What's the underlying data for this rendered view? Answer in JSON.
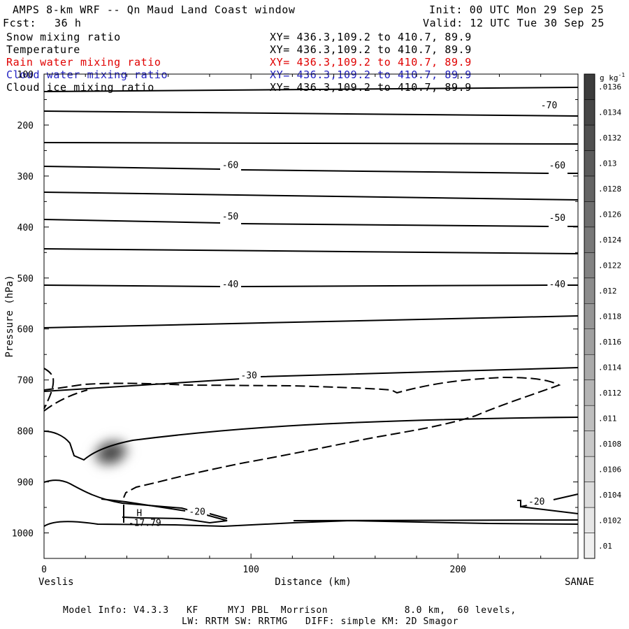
{
  "header": {
    "title": "AMPS 8-km WRF -- Qn Maud Land Coast window",
    "fcst_label": "Fcst:",
    "fcst_value": "36 h",
    "init": "Init: 00 UTC Mon 29 Sep 25",
    "valid": "Valid: 12 UTC Tue 30 Sep 25"
  },
  "fields": [
    {
      "name": "Snow mixing ratio",
      "xy": "XY= 436.3,109.2 to 410.7, 89.9",
      "color": "#000000"
    },
    {
      "name": "Temperature",
      "xy": "XY= 436.3,109.2 to 410.7, 89.9",
      "color": "#000000"
    },
    {
      "name": "Rain water mixing ratio",
      "xy": "XY= 436.3,109.2 to 410.7, 89.9",
      "color": "#e00000"
    },
    {
      "name": "Cloud water mixing ratio",
      "xy": "XY= 436.3,109.2 to 410.7, 89.9",
      "color": "#2020c0"
    },
    {
      "name": "Cloud ice mixing ratio",
      "xy": "XY= 436.3,109.2 to 410.7, 89.9",
      "color": "#000000"
    }
  ],
  "footer": {
    "line1": "Model Info: V4.3.3   KF     MYJ PBL  Morrison             8.0 km,  60 levels,",
    "line2": "LW: RRTM SW: RRTMG   DIFF: simple KM: 2D Smagor"
  },
  "chart_data": {
    "type": "cross-section contour",
    "xlabel": "Distance (km)",
    "ylabel": "Pressure (hPa)",
    "xlim": [
      0,
      258
    ],
    "ylim": [
      1050,
      100
    ],
    "x_ticks": [
      0,
      100,
      200
    ],
    "y_ticks": [
      100,
      200,
      300,
      400,
      500,
      600,
      700,
      800,
      900,
      1000
    ],
    "left_endpoint": "Veslis",
    "right_endpoint": "SANAE",
    "colorbar": {
      "unit_label": "g kg",
      "unit_exp": "-1",
      "min": 0.01,
      "max": 0.0138,
      "step": 0.0002,
      "labels": [
        ".01",
        ".0102",
        ".0104",
        ".0106",
        ".0108",
        ".011",
        ".0112",
        ".0114",
        ".0116",
        ".0118",
        ".012",
        ".0122",
        ".0124",
        ".0126",
        ".0128",
        ".013",
        ".0132",
        ".0134",
        ".0136"
      ]
    },
    "temperature_labels": [
      {
        "text": "-70",
        "x": 244,
        "p": 163
      },
      {
        "text": "-60",
        "x": 90,
        "p": 280
      },
      {
        "text": "-60",
        "x": 248,
        "p": 281
      },
      {
        "text": "-50",
        "x": 90,
        "p": 381
      },
      {
        "text": "-50",
        "x": 248,
        "p": 384
      },
      {
        "text": "-40",
        "x": 90,
        "p": 514
      },
      {
        "text": "-40",
        "x": 248,
        "p": 514
      },
      {
        "text": "-30",
        "x": 99,
        "p": 693
      },
      {
        "text": "-20",
        "x": 74,
        "p": 960
      },
      {
        "text": "-20",
        "x": 238,
        "p": 940
      }
    ],
    "high_marker": {
      "text": "H",
      "value": "-17.79",
      "x": 45,
      "p": 970
    },
    "snow_max": {
      "x": 32,
      "p": 840,
      "value": 0.0138
    }
  }
}
